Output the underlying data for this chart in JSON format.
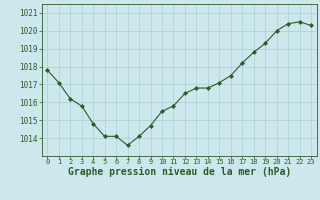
{
  "x": [
    0,
    1,
    2,
    3,
    4,
    5,
    6,
    7,
    8,
    9,
    10,
    11,
    12,
    13,
    14,
    15,
    16,
    17,
    18,
    19,
    20,
    21,
    22,
    23
  ],
  "y": [
    1017.8,
    1017.1,
    1016.2,
    1015.8,
    1014.8,
    1014.1,
    1014.1,
    1013.6,
    1014.1,
    1014.7,
    1015.5,
    1015.8,
    1016.5,
    1016.8,
    1016.8,
    1017.1,
    1017.5,
    1018.2,
    1018.8,
    1019.3,
    1020.0,
    1020.4,
    1020.5,
    1020.3
  ],
  "ylim": [
    1013.0,
    1021.5
  ],
  "yticks": [
    1014,
    1015,
    1016,
    1017,
    1018,
    1019,
    1020,
    1021
  ],
  "xticks": [
    0,
    1,
    2,
    3,
    4,
    5,
    6,
    7,
    8,
    9,
    10,
    11,
    12,
    13,
    14,
    15,
    16,
    17,
    18,
    19,
    20,
    21,
    22,
    23
  ],
  "line_color": "#2d5a27",
  "marker": "D",
  "marker_size": 2.0,
  "bg_color": "#cce8ec",
  "grid_color": "#aacdd4",
  "xlabel": "Graphe pression niveau de la mer (hPa)",
  "xlabel_color": "#2d5a27",
  "tick_color": "#2d5a27",
  "xtick_fontsize": 5.0,
  "ytick_fontsize": 5.5,
  "xlabel_fontsize": 7.0
}
